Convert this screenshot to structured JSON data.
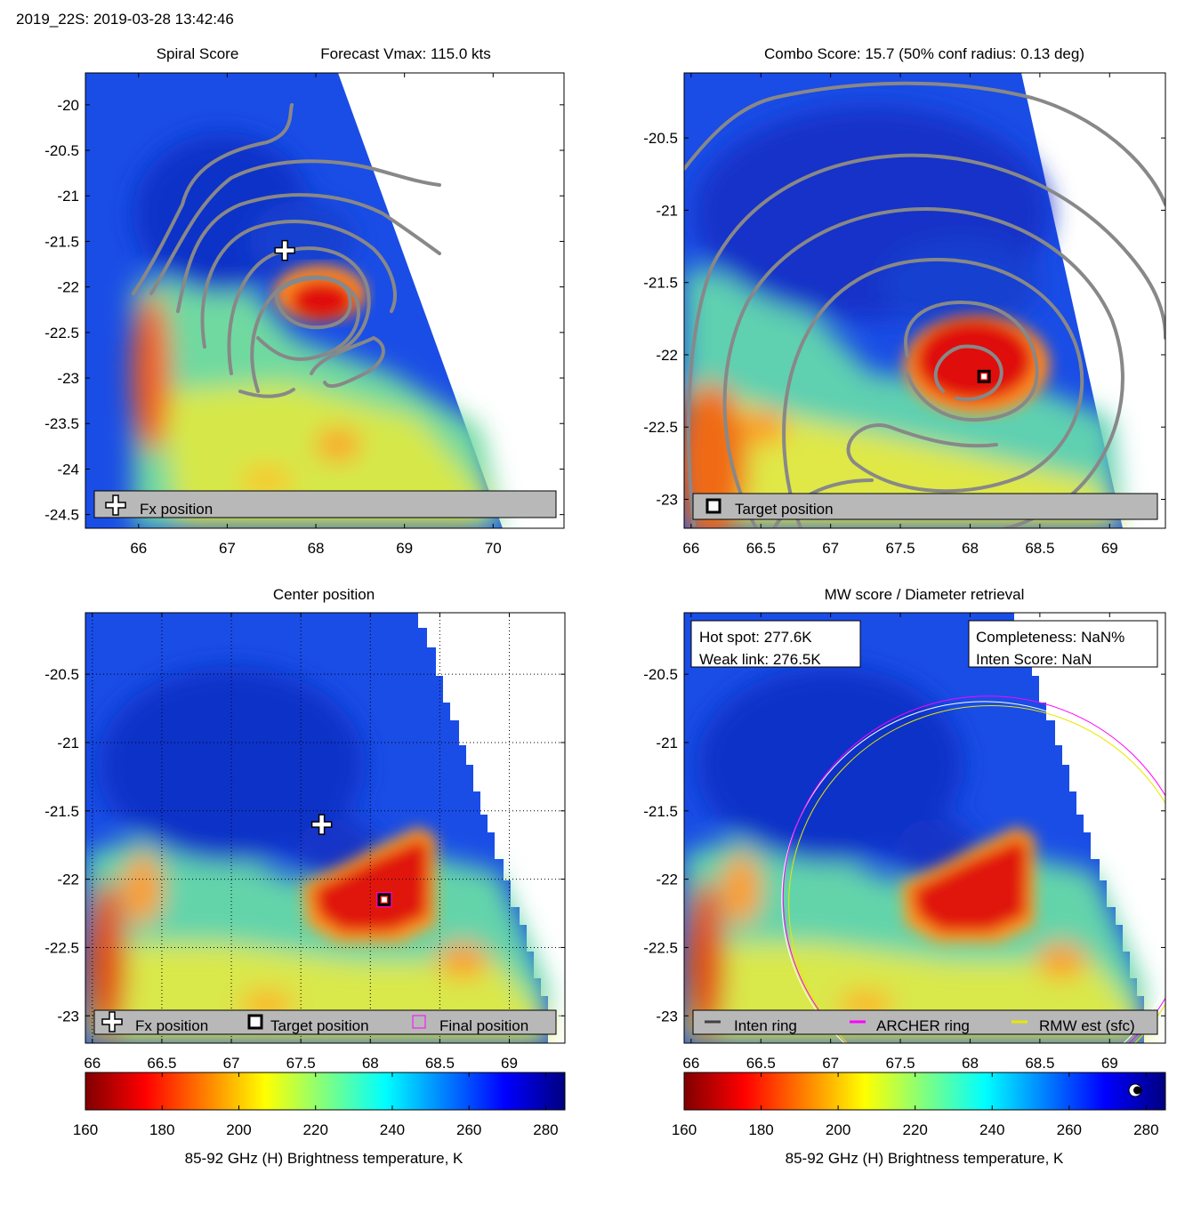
{
  "header": "2019_22S: 2019-03-28 13:42:46",
  "colors": {
    "ring_inten": "#404040",
    "ring_archer": "#ff00ff",
    "ring_rmw": "#e8e800",
    "contour": "#888888",
    "legend_bg": "#b8b8b8"
  },
  "colorbar": {
    "min": 160,
    "max": 285,
    "ticks": [
      "160",
      "180",
      "200",
      "220",
      "240",
      "260",
      "280"
    ],
    "label": "85-92 GHz (H) Brightness temperature, K"
  },
  "panels": {
    "spiral": {
      "title_left": "Spiral Score",
      "title_right": "Forecast Vmax: 115.0 kts",
      "xlim": [
        65.4,
        70.8
      ],
      "ylim": [
        -24.65,
        -19.65
      ],
      "xticks": [
        "66",
        "67",
        "68",
        "69",
        "70"
      ],
      "yticks": [
        "-20",
        "-20.5",
        "-21",
        "-21.5",
        "-22",
        "-22.5",
        "-23",
        "-23.5",
        "-24",
        "-24.5"
      ],
      "legend": [
        "Fx position"
      ]
    },
    "combo": {
      "title": "Combo Score: 15.7  (50% conf radius: 0.13 deg)",
      "xlim": [
        65.95,
        69.4
      ],
      "ylim": [
        -23.2,
        -20.05
      ],
      "xticks": [
        "66",
        "66.5",
        "67",
        "67.5",
        "68",
        "68.5",
        "69"
      ],
      "yticks": [
        "-20.5",
        "-21",
        "-21.5",
        "-22",
        "-22.5",
        "-23"
      ],
      "legend": [
        "Target position"
      ]
    },
    "center": {
      "title": "Center position",
      "xlim": [
        65.95,
        69.4
      ],
      "ylim": [
        -23.2,
        -20.05
      ],
      "xticks": [
        "66",
        "66.5",
        "67",
        "67.5",
        "68",
        "68.5",
        "69"
      ],
      "yticks": [
        "-20.5",
        "-21",
        "-21.5",
        "-22",
        "-22.5",
        "-23"
      ],
      "legend": [
        "Fx position",
        "Target position",
        "Final position"
      ]
    },
    "mw": {
      "title": "MW score / Diameter retrieval",
      "xlim": [
        65.95,
        69.4
      ],
      "ylim": [
        -23.2,
        -20.05
      ],
      "xticks": [
        "66",
        "66.5",
        "67",
        "67.5",
        "68",
        "68.5",
        "69"
      ],
      "yticks": [
        "-20.5",
        "-21",
        "-21.5",
        "-22",
        "-22.5",
        "-23"
      ],
      "box_left": [
        "Hot spot: 277.6K",
        "Weak link: 276.5K"
      ],
      "box_right": [
        "Completeness: NaN%",
        "Inten Score: NaN"
      ],
      "legend": [
        "Inten ring",
        "ARCHER ring",
        "RMW est (sfc)"
      ]
    }
  },
  "chart_data": [
    {
      "type": "heatmap",
      "title": "Spiral Score",
      "subtitle": "Forecast Vmax: 115.0 kts",
      "xlabel": "",
      "ylabel": "",
      "xlim": [
        65.4,
        70.8
      ],
      "ylim": [
        -24.65,
        -19.65
      ],
      "points": [
        {
          "name": "Fx position",
          "x": 67.65,
          "y": -21.6
        }
      ]
    },
    {
      "type": "heatmap",
      "title": "Combo Score: 15.7  (50% conf radius: 0.13 deg)",
      "xlim": [
        65.95,
        69.4
      ],
      "ylim": [
        -23.2,
        -20.05
      ],
      "points": [
        {
          "name": "Target position",
          "x": 68.1,
          "y": -22.15
        }
      ]
    },
    {
      "type": "heatmap",
      "title": "Center position",
      "xlim": [
        65.95,
        69.4
      ],
      "ylim": [
        -23.2,
        -20.05
      ],
      "points": [
        {
          "name": "Fx position",
          "x": 67.65,
          "y": -21.6
        },
        {
          "name": "Target position",
          "x": 68.1,
          "y": -22.15
        },
        {
          "name": "Final position",
          "x": 68.1,
          "y": -22.15
        }
      ]
    },
    {
      "type": "heatmap",
      "title": "MW score / Diameter retrieval",
      "xlim": [
        65.95,
        69.4
      ],
      "ylim": [
        -23.2,
        -20.05
      ],
      "rings": [
        {
          "name": "Inten ring",
          "center": [
            68.1,
            -22.15
          ],
          "radius_deg": 1.45
        },
        {
          "name": "ARCHER ring",
          "center": [
            68.1,
            -22.15
          ],
          "radius_deg": 1.47
        },
        {
          "name": "RMW est (sfc)",
          "center": [
            68.1,
            -22.15
          ],
          "radius_deg": 1.45
        }
      ]
    }
  ]
}
